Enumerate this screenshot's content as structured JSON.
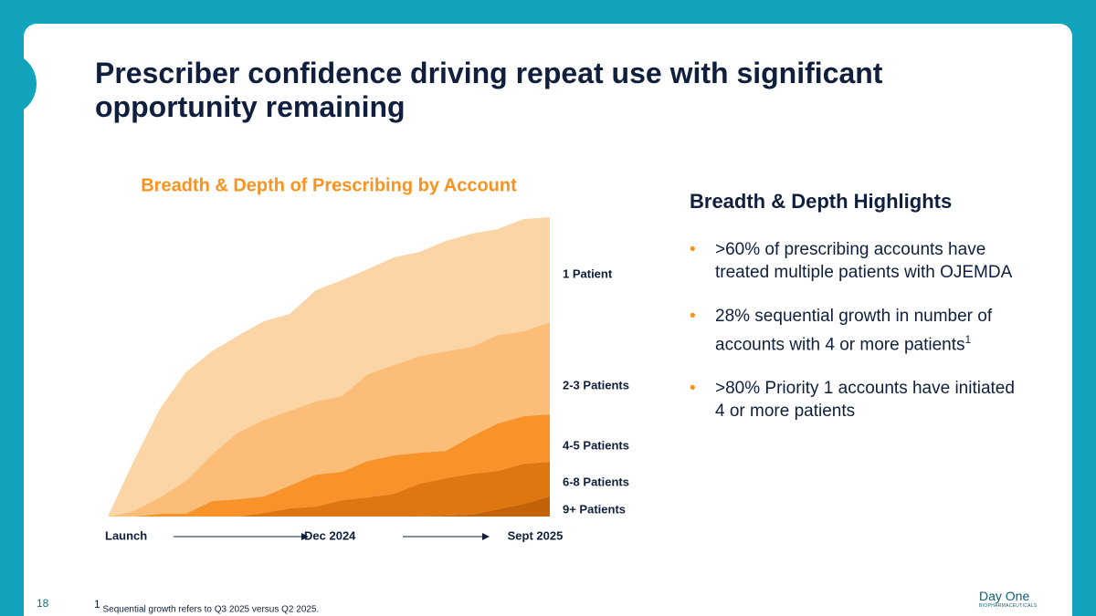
{
  "header": {
    "title": "Prescriber confidence driving repeat use with significant opportunity remaining"
  },
  "chart_data": {
    "type": "stacked_area",
    "title": "Breadth & Depth of Prescribing by Account",
    "categories": [
      "Launch",
      null,
      null,
      null,
      null,
      null,
      null,
      null,
      null,
      "Dec 2024",
      null,
      null,
      null,
      null,
      null,
      null,
      null,
      "Sept 2025"
    ],
    "ylim": [
      0,
      328
    ],
    "series": [
      {
        "name": "9+ Patients",
        "color": "#c4620a",
        "values": [
          0,
          0,
          0,
          0,
          0,
          0,
          0,
          0,
          0,
          0,
          0,
          0,
          0,
          1,
          2,
          8,
          14,
          22
        ]
      },
      {
        "name": "6-8 Patients",
        "color": "#de7710",
        "values": [
          0,
          0,
          0,
          0,
          0,
          0,
          4,
          9,
          11,
          18,
          21,
          25,
          36,
          41,
          45,
          42,
          44,
          38
        ]
      },
      {
        "name": "4-5 Patients",
        "color": "#f8932a",
        "values": [
          0,
          0,
          3,
          3,
          17,
          19,
          18,
          25,
          35,
          31,
          40,
          42,
          34,
          30,
          41,
          52,
          52,
          52
        ]
      },
      {
        "name": "2-3 Patients",
        "color": "#fbbd78",
        "values": [
          0,
          6,
          18,
          36,
          51,
          73,
          84,
          82,
          80,
          83,
          95,
          99,
          106,
          109,
          98,
          97,
          93,
          101
        ]
      },
      {
        "name": "1 Patient",
        "color": "#fcd5a6",
        "values": [
          0,
          55,
          97,
          119,
          113,
          106,
          108,
          106,
          122,
          127,
          115,
          118,
          114,
          121,
          124,
          116,
          123,
          115
        ]
      }
    ]
  },
  "highlights": {
    "title": "Breadth & Depth Highlights",
    "bullets": [
      {
        "text": ">60% of prescribing accounts have treated multiple patients with OJEMDA"
      },
      {
        "text": "28% sequential growth in number of accounts with 4 or more patients",
        "note": "1"
      },
      {
        "text": ">80% Priority 1 accounts have initiated 4 or more patients"
      }
    ]
  },
  "footnote": {
    "marker": "1",
    "text": "Sequential growth refers to Q3 2025 versus Q2 2025."
  },
  "page_number": "18",
  "logo": {
    "name": "Day One",
    "tagline": "BIOPHARMACEUTICALS"
  }
}
